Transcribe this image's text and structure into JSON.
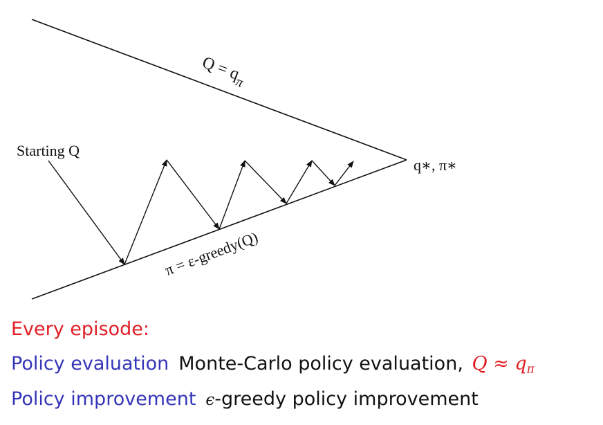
{
  "diagram": {
    "start_label": "Starting Q",
    "upper_line_label": "Q = q",
    "upper_line_label_sub": "π",
    "lower_line_label": "π = ε-greedy(Q)",
    "endpoint_label": "q∗, π∗"
  },
  "text_lines": {
    "episode": "Every episode:",
    "evaluation_term": "Policy evaluation",
    "evaluation_desc": "Monte-Carlo policy evaluation,",
    "evaluation_math": "Q ≈ q",
    "evaluation_math_sub": "π",
    "improvement_term": "Policy improvement",
    "improvement_eps": "ϵ",
    "improvement_desc": "-greedy policy improvement"
  },
  "colors": {
    "highlight_red": "#e01e24",
    "term_blue": "#3535b8",
    "text_black": "#111111"
  }
}
